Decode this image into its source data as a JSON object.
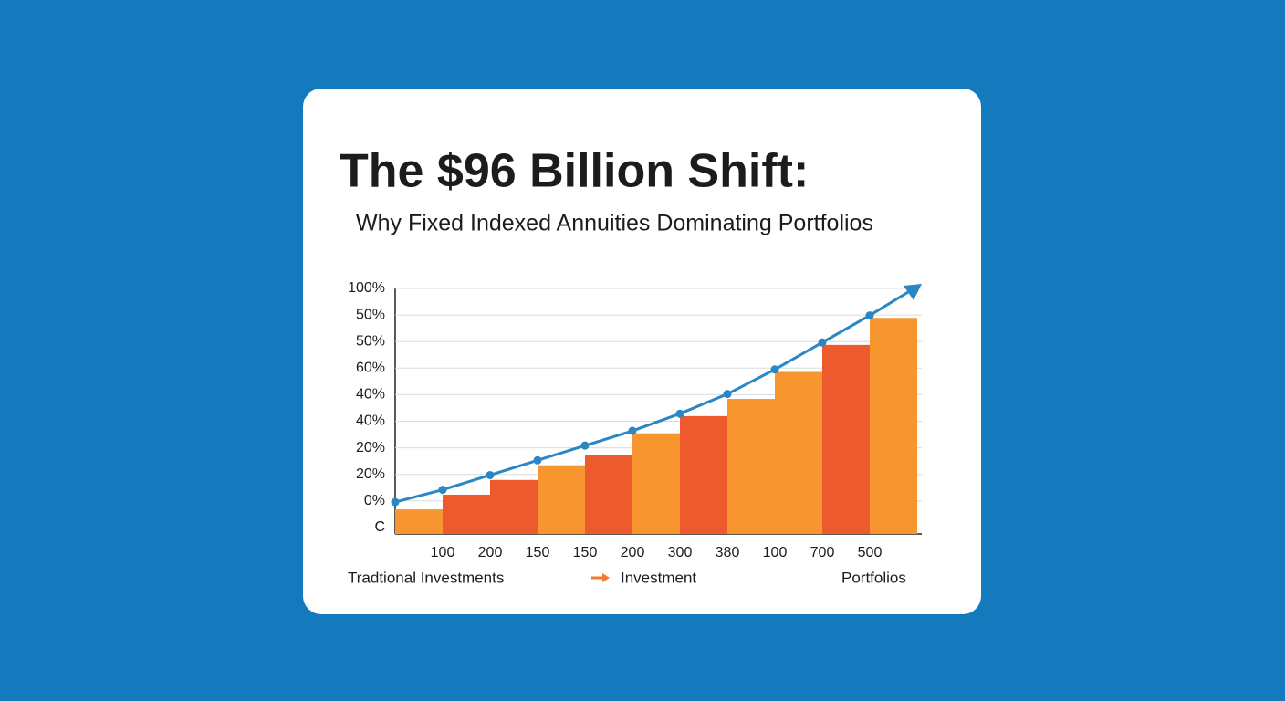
{
  "chart_data": {
    "type": "bar",
    "title": "The $96 Billion Shift:",
    "subtitle": "Why Fixed Indexed Annuities Dominating Portfolios",
    "y_labels": [
      "100%",
      "50%",
      "50%",
      "60%",
      "40%",
      "40%",
      "20%",
      "20%",
      "0%",
      "C"
    ],
    "categories": [
      null,
      "100",
      "200",
      "150",
      "150",
      "200",
      "300",
      "380",
      "100",
      "700",
      "500"
    ],
    "bars": {
      "values": [
        10,
        16,
        22,
        28,
        32,
        41,
        48,
        55,
        66,
        77,
        88
      ],
      "colors": [
        "#f7962f",
        "#ec5a2d",
        "#ec5a2d",
        "#f7962f",
        "#ec5a2d",
        "#f7962f",
        "#ec5a2d",
        "#f7962f",
        "#f7962f",
        "#ec5a2d",
        "#f7962f"
      ]
    },
    "line": {
      "values": [
        13,
        18,
        24,
        30,
        36,
        42,
        49,
        57,
        67,
        78,
        89
      ],
      "color": "#2b86c5"
    },
    "ylim": [
      0,
      100
    ],
    "footer": [
      "Tradtional Investments",
      "Investment",
      "Portfolios"
    ]
  }
}
